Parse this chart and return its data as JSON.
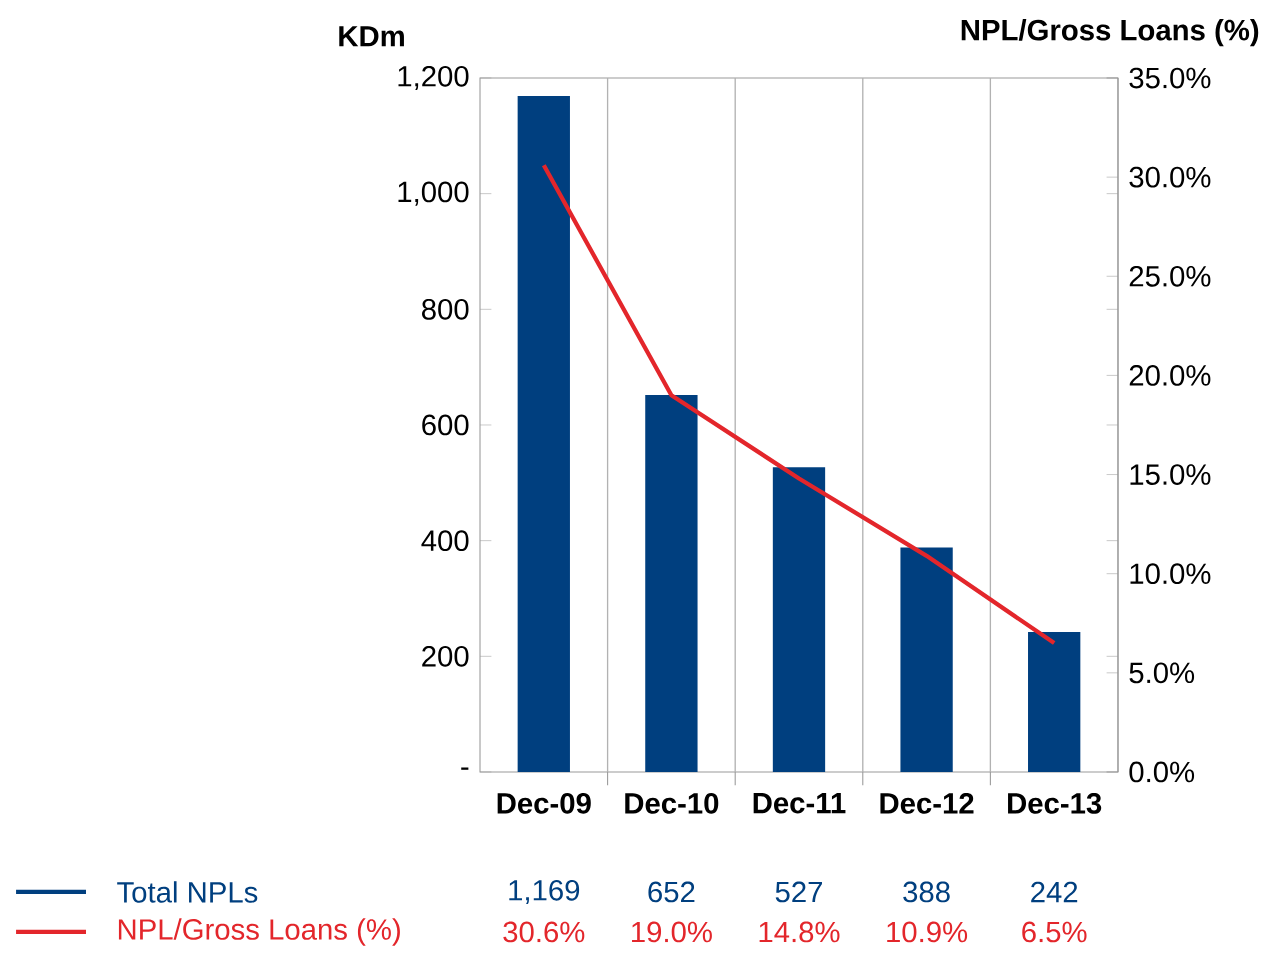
{
  "chart_data": {
    "type": "bar",
    "ylabel": "KDm",
    "y2label": "NPL/Gross Loans (%)",
    "categories": [
      "Dec-09",
      "Dec-10",
      "Dec-11",
      "Dec-12",
      "Dec-13"
    ],
    "series": [
      {
        "name": "Total NPLs",
        "color": "#003f7f",
        "values": [
          1169,
          652,
          527,
          388,
          242
        ],
        "value_labels": [
          "1,169",
          "652",
          "527",
          "388",
          "242"
        ]
      },
      {
        "name": "NPL/Gross Loans (%)",
        "type": "line",
        "axis": "y2",
        "color": "#e3262b",
        "values": [
          30.6,
          19.0,
          14.8,
          10.9,
          6.5
        ],
        "value_labels": [
          "30.6%",
          "19.0%",
          "14.8%",
          "10.9%",
          "6.5%"
        ]
      }
    ],
    "ylim": [
      0,
      1200
    ],
    "yticks": [
      {
        "value": 0,
        "label": "-"
      },
      200,
      400,
      600,
      800,
      {
        "value": 1000,
        "label": "1,000"
      },
      {
        "value": 1200,
        "label": "1,200"
      }
    ],
    "y2lim": [
      0,
      35
    ],
    "y2ticks": [
      {
        "value": 0,
        "label": "0.0%"
      },
      {
        "value": 5,
        "label": "5.0%"
      },
      {
        "value": 10,
        "label": "10.0%"
      },
      {
        "value": 15,
        "label": "15.0%"
      },
      {
        "value": 20,
        "label": "20.0%"
      },
      {
        "value": 25,
        "label": "25.0%"
      },
      {
        "value": 30,
        "label": "30.0%"
      },
      {
        "value": 35,
        "label": "35.0%"
      }
    ],
    "grid": "x",
    "legend": "bottom",
    "marker": "none",
    "line_style": "solid"
  }
}
